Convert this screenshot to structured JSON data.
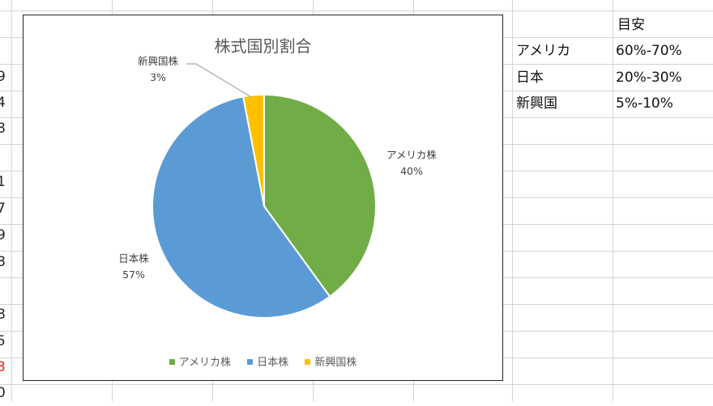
{
  "sheet": {
    "left_cut_values": [
      {
        "text": "9",
        "red": false
      },
      {
        "text": "4",
        "red": false
      },
      {
        "text": "8",
        "red": false
      },
      {
        "text": "1",
        "red": false
      },
      {
        "text": "7",
        "red": false
      },
      {
        "text": "9",
        "red": false
      },
      {
        "text": "8",
        "red": false
      },
      {
        "text": "8",
        "red": false
      },
      {
        "text": "5",
        "red": false
      },
      {
        "text": "3",
        "red": true
      },
      {
        "text": "0",
        "red": false
      }
    ],
    "table": {
      "header": "目安",
      "rows": [
        {
          "label": "アメリカ",
          "value": "60%-70%"
        },
        {
          "label": "日本",
          "value": "20%-30%"
        },
        {
          "label": "新興国",
          "value": "5%-10%"
        }
      ]
    }
  },
  "chart_data": {
    "type": "pie",
    "title": "株式国別割合",
    "slices": [
      {
        "label": "アメリカ株",
        "percent_label": "40%",
        "value": 40,
        "color": "#70ad47"
      },
      {
        "label": "日本株",
        "percent_label": "57%",
        "value": 57,
        "color": "#5b9bd5"
      },
      {
        "label": "新興国株",
        "percent_label": "3%",
        "value": 3,
        "color": "#ffc000"
      }
    ],
    "legend": [
      "アメリカ株",
      "日本株",
      "新興国株"
    ],
    "legend_position": "bottom",
    "start_angle": "12 o'clock, clockwise"
  }
}
